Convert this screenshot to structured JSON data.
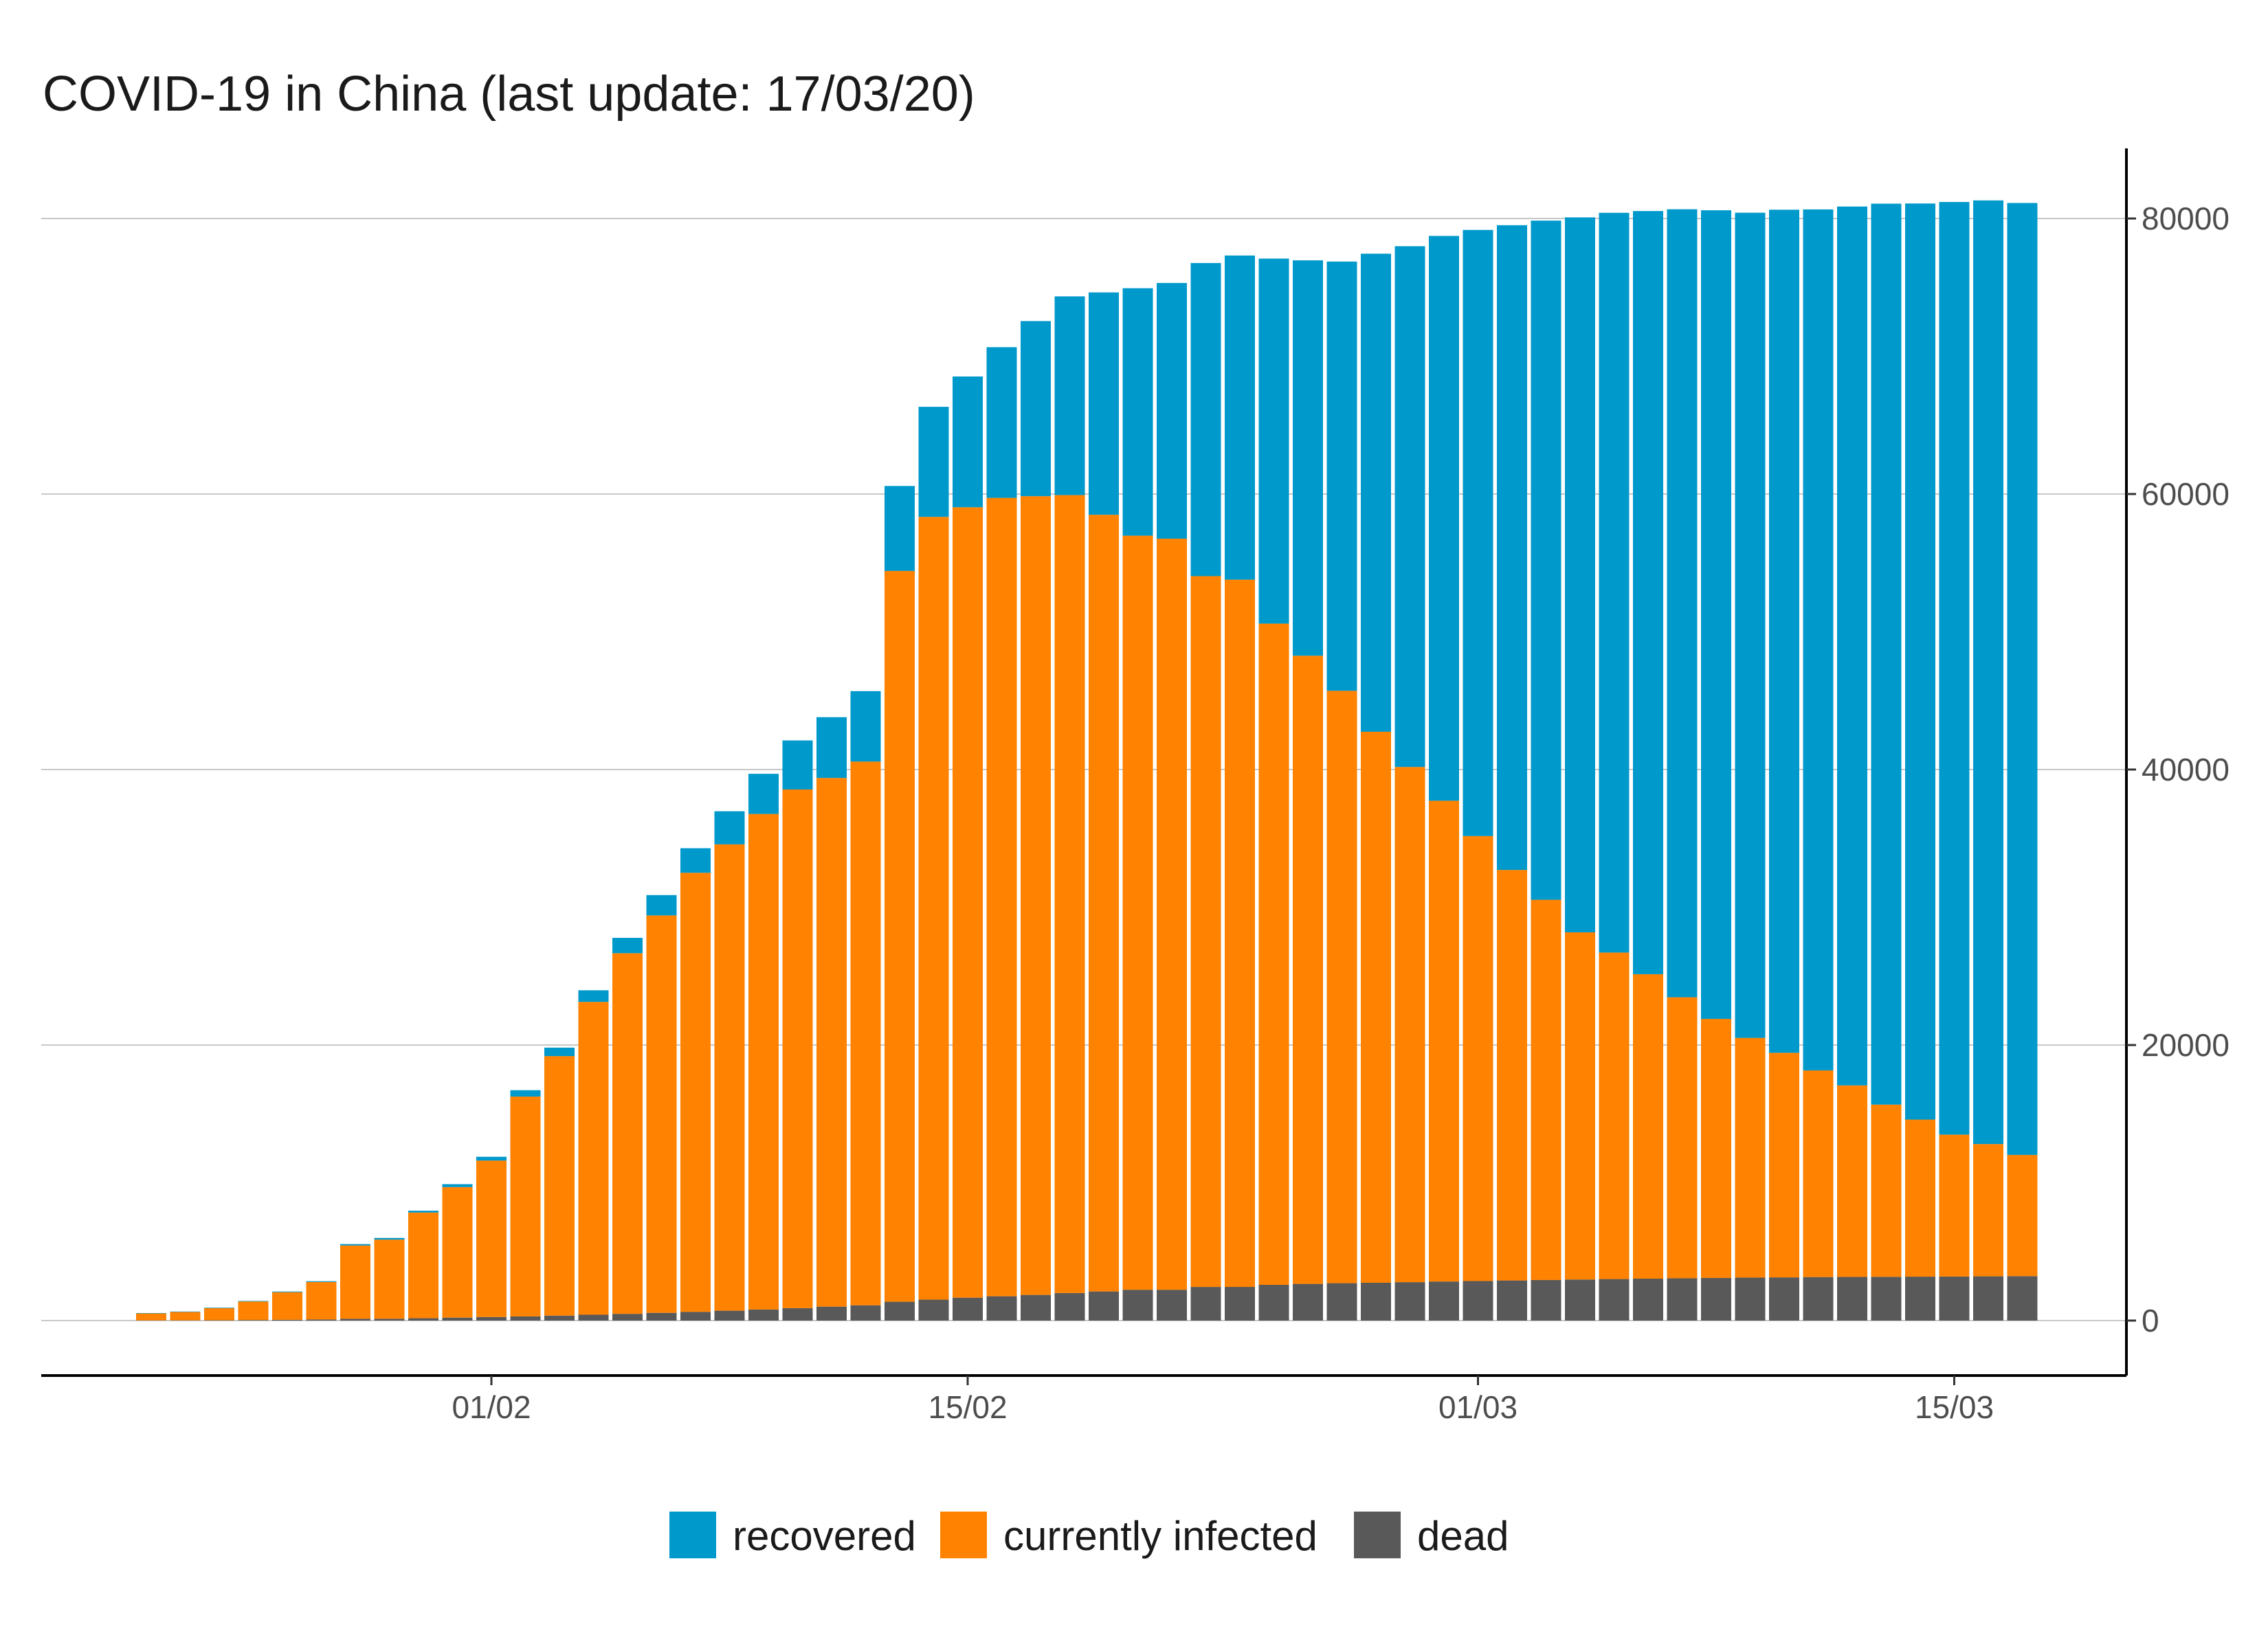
{
  "chart_data": {
    "type": "bar",
    "stacked": true,
    "title": "COVID-19 in China (last update: 17/03/20)",
    "xlabel": "",
    "ylabel": "",
    "y_axis_side": "right",
    "ylim": [
      0,
      85000
    ],
    "yticks": [
      0,
      20000,
      40000,
      60000,
      80000
    ],
    "ytick_labels": [
      "0",
      "20000",
      "40000",
      "60000",
      "80000"
    ],
    "grid": true,
    "legend": "bottom",
    "categories": [
      "2020-01-22",
      "2020-01-23",
      "2020-01-24",
      "2020-01-25",
      "2020-01-26",
      "2020-01-27",
      "2020-01-28",
      "2020-01-29",
      "2020-01-30",
      "2020-01-31",
      "2020-02-01",
      "2020-02-02",
      "2020-02-03",
      "2020-02-04",
      "2020-02-05",
      "2020-02-06",
      "2020-02-07",
      "2020-02-08",
      "2020-02-09",
      "2020-02-10",
      "2020-02-11",
      "2020-02-12",
      "2020-02-13",
      "2020-02-14",
      "2020-02-15",
      "2020-02-16",
      "2020-02-17",
      "2020-02-18",
      "2020-02-19",
      "2020-02-20",
      "2020-02-21",
      "2020-02-22",
      "2020-02-23",
      "2020-02-24",
      "2020-02-25",
      "2020-02-26",
      "2020-02-27",
      "2020-02-28",
      "2020-02-29",
      "2020-03-01",
      "2020-03-02",
      "2020-03-03",
      "2020-03-04",
      "2020-03-05",
      "2020-03-06",
      "2020-03-07",
      "2020-03-08",
      "2020-03-09",
      "2020-03-10",
      "2020-03-11",
      "2020-03-12",
      "2020-03-13",
      "2020-03-14",
      "2020-03-15",
      "2020-03-16",
      "2020-03-17"
    ],
    "x_tick_labels": [
      {
        "date": "2020-02-01",
        "label": "01/02"
      },
      {
        "date": "2020-02-15",
        "label": "15/02"
      },
      {
        "date": "2020-03-01",
        "label": "01/03"
      },
      {
        "date": "2020-03-15",
        "label": "15/03"
      }
    ],
    "series": [
      {
        "name": "dead",
        "color": "#595959",
        "values": [
          17,
          18,
          26,
          42,
          56,
          82,
          131,
          133,
          171,
          213,
          259,
          304,
          361,
          425,
          490,
          562,
          632,
          717,
          804,
          904,
          1011,
          1111,
          1367,
          1520,
          1662,
          1765,
          1863,
          2002,
          2114,
          2236,
          2236,
          2441,
          2443,
          2593,
          2663,
          2715,
          2744,
          2788,
          2835,
          2870,
          2912,
          2945,
          2981,
          3013,
          3042,
          3070,
          3097,
          3119,
          3136,
          3158,
          3169,
          3176,
          3189,
          3199,
          3213,
          3226
        ]
      },
      {
        "name": "currently infected",
        "color": "#ff8200",
        "values": [
          503,
          608,
          880,
          1344,
          2004,
          2720,
          5321,
          5744,
          7671,
          9475,
          11356,
          15957,
          18837,
          22708,
          26177,
          28848,
          31874,
          33851,
          35973,
          37649,
          38378,
          39467,
          53050,
          56820,
          57376,
          57957,
          57980,
          57920,
          56380,
          54740,
          54520,
          51600,
          51340,
          48000,
          45600,
          43000,
          40000,
          37400,
          34900,
          32300,
          29800,
          27600,
          25200,
          23700,
          22100,
          20400,
          18800,
          17400,
          16300,
          15000,
          13900,
          12500,
          11400,
          10300,
          9600,
          8800
        ]
      },
      {
        "name": "recovered",
        "color": "#0099cc",
        "values": [
          28,
          30,
          36,
          39,
          49,
          58,
          101,
          120,
          135,
          214,
          275,
          463,
          614,
          843,
          1115,
          1476,
          1781,
          2404,
          2915,
          3559,
          4412,
          5114,
          6167,
          7989,
          9492,
          10937,
          12709,
          14424,
          16140,
          17962,
          18564,
          22728,
          23530,
          26495,
          28700,
          31159,
          34700,
          37800,
          41000,
          44000,
          46800,
          49300,
          51900,
          53700,
          55400,
          57200,
          58700,
          59900,
          61200,
          62500,
          63800,
          65400,
          66500,
          67700,
          68500,
          69100
        ]
      }
    ]
  },
  "legend": {
    "items": [
      {
        "label": "recovered",
        "color": "#0099cc"
      },
      {
        "label": "currently infected",
        "color": "#ff8200"
      },
      {
        "label": "dead",
        "color": "#595959"
      }
    ]
  }
}
